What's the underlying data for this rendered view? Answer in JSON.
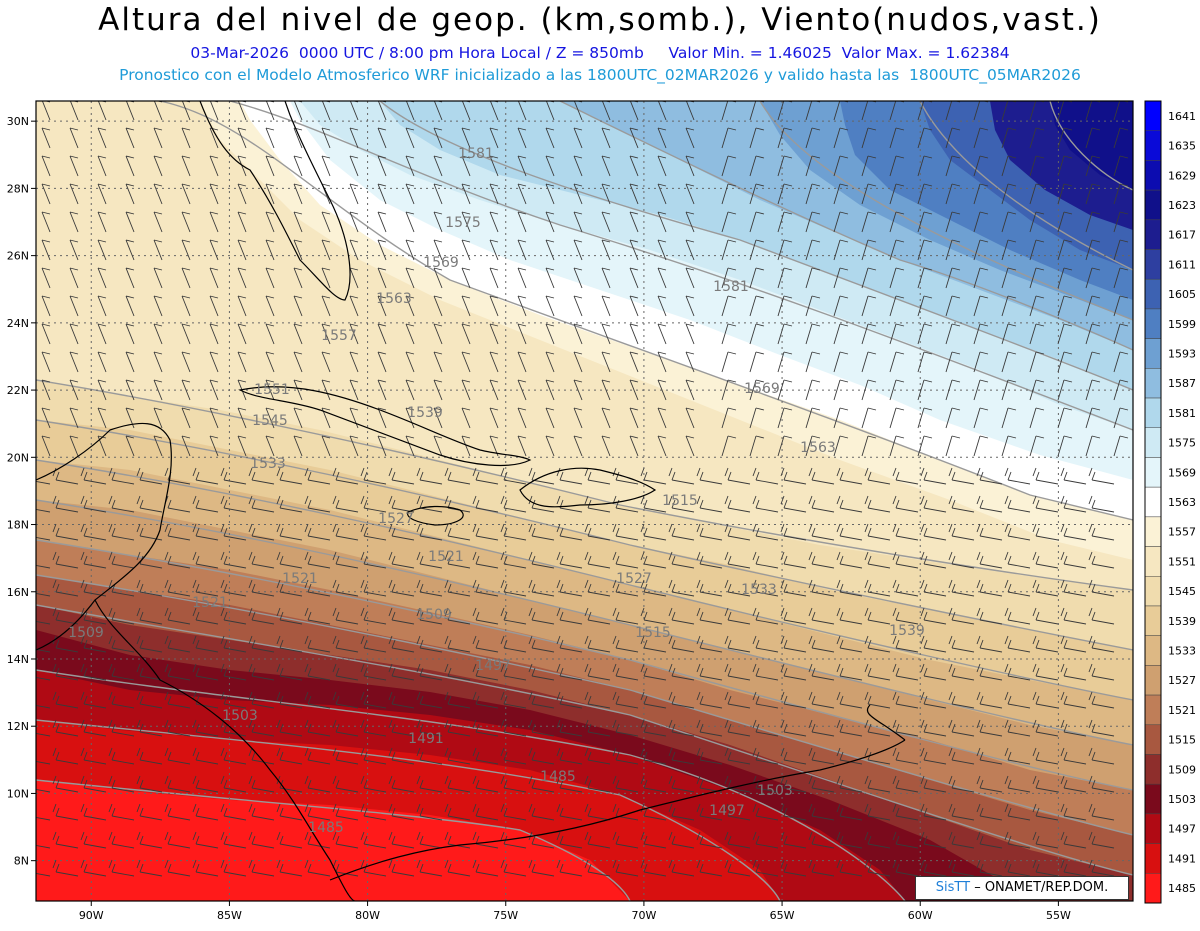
{
  "header": {
    "title": "Altura del nivel de geop. (km,somb.), Viento(nudos,vast.)",
    "subtitle1": "03-Mar-2026  0000 UTC / 8:00 pm Hora Local / Z = 850mb     Valor Min. = 1.46025  Valor Max. = 1.62384",
    "subtitle2": "Pronostico con el Modelo Atmosferico WRF inicializado a las 1800UTC_02MAR2026 y valido hasta las  1800UTC_05MAR2026"
  },
  "axes": {
    "lat_labels": [
      "30N",
      "28N",
      "26N",
      "24N",
      "22N",
      "20N",
      "18N",
      "16N",
      "14N",
      "12N",
      "10N",
      "8N"
    ],
    "lat_values": [
      30,
      28,
      26,
      24,
      22,
      20,
      18,
      16,
      14,
      12,
      10,
      8
    ],
    "lon_labels": [
      "90W",
      "85W",
      "80W",
      "75W",
      "70W",
      "65W",
      "60W",
      "55W"
    ],
    "lon_values": [
      -90,
      -85,
      -80,
      -75,
      -70,
      -65,
      -60,
      -55
    ],
    "lat_range": [
      6.8,
      30.6
    ],
    "lon_range": [
      -92,
      -52.3
    ]
  },
  "colorbar": {
    "levels": [
      "1641",
      "1635",
      "1629",
      "1623",
      "1617",
      "1611",
      "1605",
      "1599",
      "1593",
      "1587",
      "1581",
      "1575",
      "1569",
      "1563",
      "1557",
      "1551",
      "1545",
      "1539",
      "1533",
      "1527",
      "1521",
      "1515",
      "1509",
      "1503",
      "1497",
      "1491",
      "1485"
    ],
    "colors": [
      "#0000ff",
      "#0a0ad8",
      "#0c0cb0",
      "#10108a",
      "#1d1d8f",
      "#2e3fa0",
      "#3d62b2",
      "#4f7fc2",
      "#6ea0d2",
      "#8fbde0",
      "#b0d8ec",
      "#cfeaf4",
      "#e4f5fa",
      "#ffffff",
      "#fbf2d6",
      "#f6e7c1",
      "#f0dcae",
      "#e8cc98",
      "#ddb884",
      "#cfa070",
      "#bf7e58",
      "#a85840",
      "#8e2e2c",
      "#7a0a1c",
      "#b00a14",
      "#d81010",
      "#ff1a1a"
    ]
  },
  "contour_labels": [
    {
      "text": "1581"
    },
    {
      "text": "1575"
    },
    {
      "text": "1569"
    },
    {
      "text": "1563"
    },
    {
      "text": "1557"
    },
    {
      "text": "1551"
    },
    {
      "text": "1545"
    },
    {
      "text": "1539"
    },
    {
      "text": "1533"
    },
    {
      "text": "1527"
    },
    {
      "text": "1521"
    },
    {
      "text": "1521"
    },
    {
      "text": "1521"
    },
    {
      "text": "1515"
    },
    {
      "text": "1515"
    },
    {
      "text": "1509"
    },
    {
      "text": "1509"
    },
    {
      "text": "1503"
    },
    {
      "text": "1503"
    },
    {
      "text": "1497"
    },
    {
      "text": "1497"
    },
    {
      "text": "1491"
    },
    {
      "text": "1485"
    },
    {
      "text": "1485"
    },
    {
      "text": "1569"
    },
    {
      "text": "1563"
    },
    {
      "text": "1581"
    },
    {
      "text": "1527"
    },
    {
      "text": "1533"
    },
    {
      "text": "1539"
    }
  ],
  "credit": {
    "brand": "SisTT",
    "agency": "ONAMET/REP.DOM."
  }
}
